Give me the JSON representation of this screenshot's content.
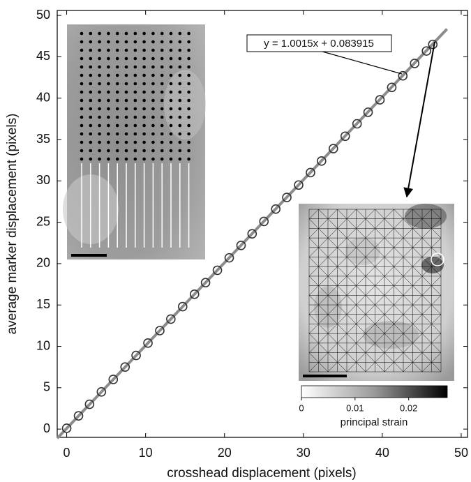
{
  "chart_data": {
    "type": "scatter",
    "x_label": "crosshead displacement (pixels)",
    "y_label": "average marker displacement (pixels)",
    "xlim": [
      -1.2,
      50.8
    ],
    "ylim": [
      -1,
      50.6
    ],
    "xticks": [
      0,
      10,
      20,
      30,
      40,
      50
    ],
    "yticks": [
      0,
      5,
      10,
      15,
      20,
      25,
      30,
      35,
      40,
      45,
      50
    ],
    "x": [
      0,
      1.5,
      2.9,
      4.4,
      5.9,
      7.4,
      8.8,
      10.3,
      11.8,
      13.2,
      14.7,
      16.2,
      17.6,
      19.1,
      20.6,
      22.1,
      23.5,
      25.0,
      26.5,
      27.9,
      29.4,
      30.9,
      32.3,
      33.8,
      35.3,
      36.8,
      38.2,
      39.7,
      41.2,
      42.6,
      44.1,
      45.6,
      46.4
    ],
    "values": [
      0.1,
      1.6,
      3.0,
      4.5,
      6.0,
      7.5,
      8.9,
      10.4,
      11.9,
      13.3,
      14.8,
      16.3,
      17.7,
      19.2,
      20.7,
      22.2,
      23.6,
      25.1,
      26.6,
      28.0,
      29.5,
      31.0,
      32.4,
      33.9,
      35.4,
      36.9,
      38.3,
      39.8,
      41.3,
      42.7,
      44.2,
      45.7,
      46.5
    ],
    "color": "#333333",
    "fit": {
      "label": "y = 1.0015x + 0.083915",
      "slope": 1.0015,
      "intercept": 0.083915,
      "x_range": [
        -1.2,
        48.2
      ],
      "color": "#8c8c8c"
    },
    "colorbar": {
      "label": "principal strain",
      "lim": [
        0,
        0.0272
      ],
      "ticks": [
        0,
        0.01,
        0.02
      ]
    }
  }
}
